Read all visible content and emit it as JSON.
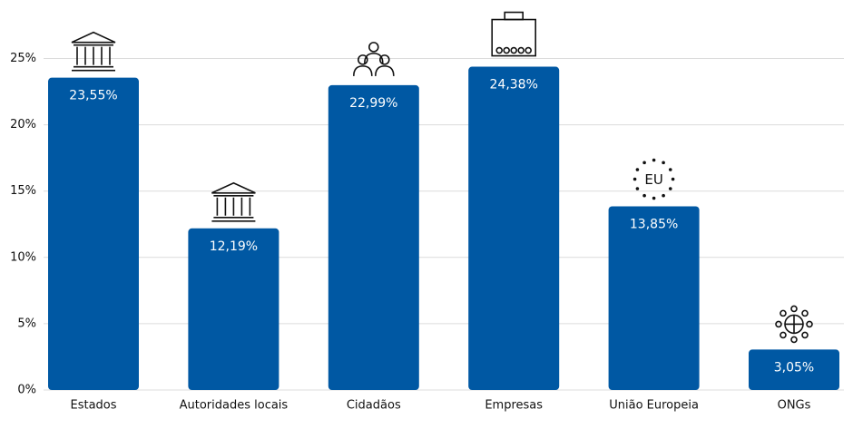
{
  "chart_data": {
    "type": "bar",
    "categories": [
      "Estados",
      "Autoridades locais",
      "Cidadãos",
      "Empresas",
      "União Europeia",
      "ONGs"
    ],
    "values": [
      23.55,
      12.19,
      22.99,
      24.38,
      13.85,
      3.05
    ],
    "value_labels": [
      "23,55%",
      "12,19%",
      "22,99%",
      "24,38%",
      "13,85%",
      "3,05%"
    ],
    "color": "#0058a3",
    "ylim": [
      0,
      29
    ],
    "yticks": [
      {
        "value": 0,
        "label": "0%"
      },
      {
        "value": 5,
        "label": "5%"
      },
      {
        "value": 10,
        "label": "10%"
      },
      {
        "value": 15,
        "label": "15%"
      },
      {
        "value": 20,
        "label": "20%"
      },
      {
        "value": 25,
        "label": "25%"
      }
    ],
    "grid": true,
    "annotations": [
      "EU"
    ]
  }
}
